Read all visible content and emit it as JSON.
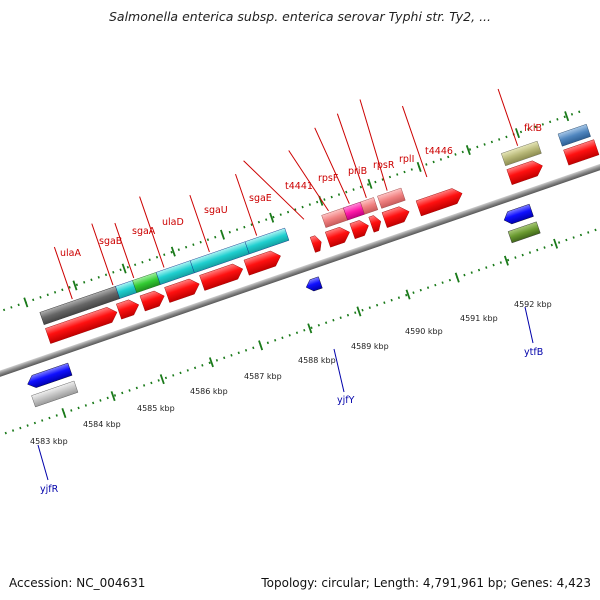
{
  "title": "Salmonella enterica subsp. enterica serovar Typhi str. Ty2, ...",
  "footer": {
    "accession": "Accession: NC_004631",
    "topology": "Topology: circular; Length: 4,791,961 bp; Genes: 4,423"
  },
  "scale_labels": [
    "4583 kbp",
    "4584 kbp",
    "4585 kbp",
    "4586 kbp",
    "4587 kbp",
    "4588 kbp",
    "4589 kbp",
    "4590 kbp",
    "4591 kbp",
    "4592 kbp"
  ],
  "forward_gene_labels": [
    "ulaA",
    "sgaB",
    "sgaA",
    "ulaD",
    "sgaU",
    "sgaE",
    "t4441",
    "rpsF",
    "priB",
    "rpsR",
    "rplI",
    "t4446",
    "fklB"
  ],
  "reverse_gene_labels": [
    "yjfY",
    "ytfB",
    "yjfR"
  ],
  "colors": {
    "gene": "#ff1a1a",
    "reverse_gene": "#1a1aff",
    "backbone": "#8a8a8a",
    "tick": "#1a7a1a",
    "label_forward": "#cc0000",
    "label_reverse": "#0000aa"
  }
}
